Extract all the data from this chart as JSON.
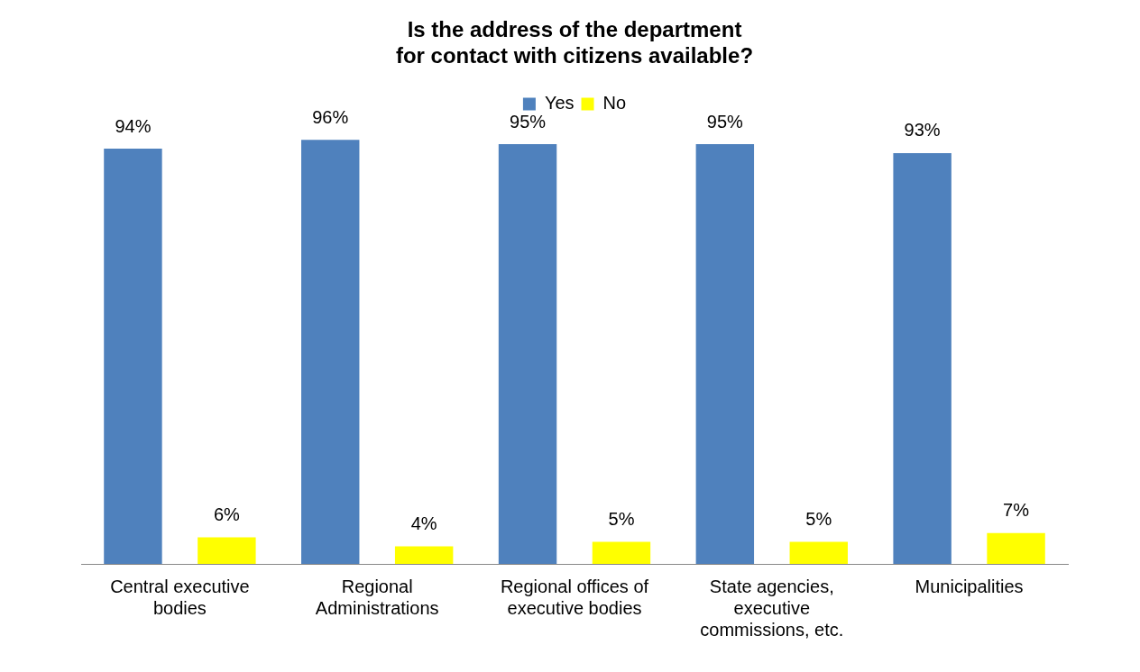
{
  "chart_data": {
    "type": "bar",
    "title": "Is the address of the department\nfor contact with citizens available?",
    "categories": [
      "Central executive bodies",
      "Regional Administrations",
      "Regional offices of executive bodies",
      "State agencies, executive commissions, etc.",
      "Municipalities"
    ],
    "series": [
      {
        "name": "Yes",
        "color": "#4f81bd",
        "values": [
          94,
          96,
          95,
          95,
          93
        ],
        "value_labels": [
          "94%",
          "96%",
          "95%",
          "95%",
          "93%"
        ]
      },
      {
        "name": "No",
        "color": "#ffff00",
        "values": [
          6,
          4,
          5,
          5,
          7
        ],
        "value_labels": [
          "6%",
          "4%",
          "5%",
          "5%",
          "7%"
        ]
      }
    ],
    "grid": false,
    "legend": "top"
  }
}
